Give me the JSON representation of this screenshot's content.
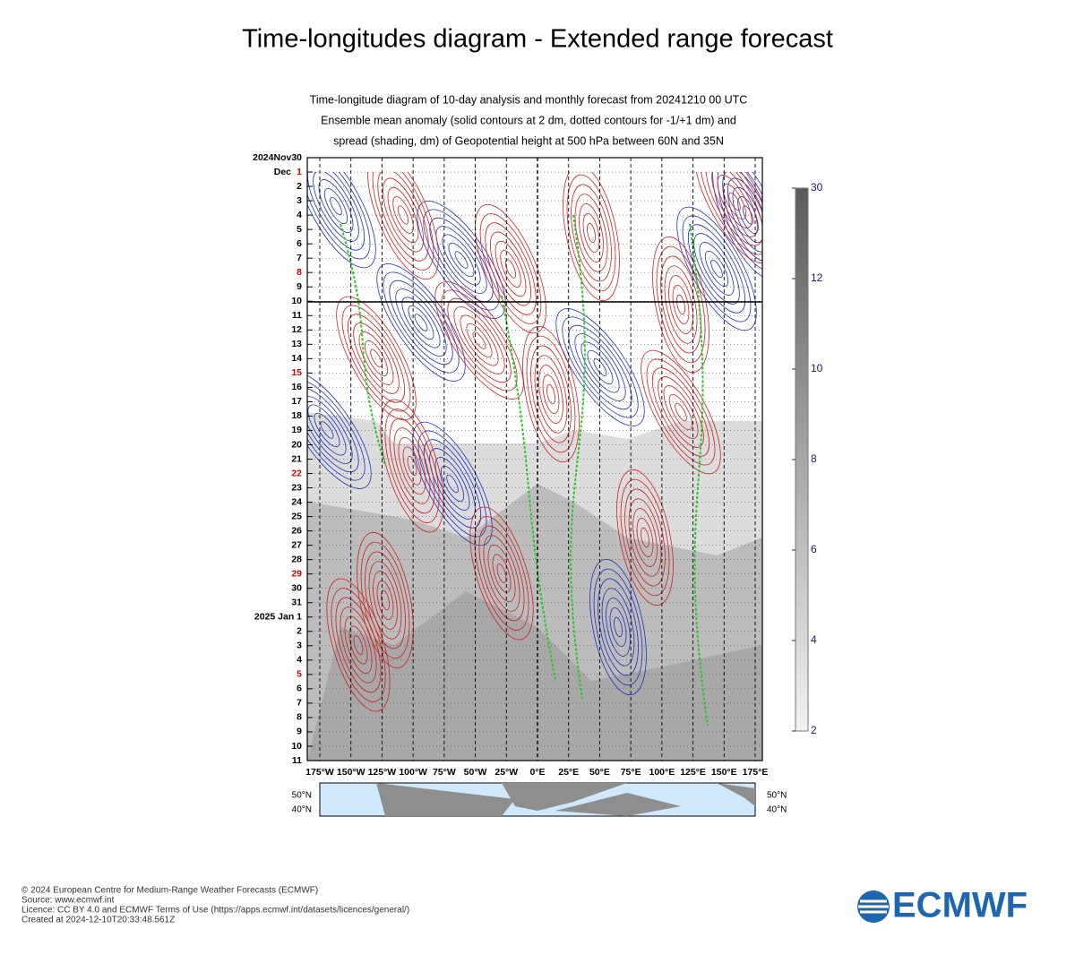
{
  "header": {
    "title": "Time-longitudes diagram - Extended range forecast"
  },
  "plot": {
    "title_lines": [
      "Time-longitude diagram of 10-day analysis and monthly forecast from 20241210 00 UTC",
      "Ensemble mean anomaly (solid contours at 2 dm, dotted contours for -1/+1 dm) and",
      "spread (shading, dm) of Geopotential height at 500 hPa between 60N and 35N"
    ],
    "rows": [
      {
        "label": "2024Nov30",
        "color": "#000000"
      },
      {
        "prefix": "Dec",
        "label": "1",
        "color": "#d00000"
      },
      {
        "label": "2",
        "color": "#000000"
      },
      {
        "label": "3",
        "color": "#000000"
      },
      {
        "label": "4",
        "color": "#000000"
      },
      {
        "label": "5",
        "color": "#000000"
      },
      {
        "label": "6",
        "color": "#000000"
      },
      {
        "label": "7",
        "color": "#000000"
      },
      {
        "label": "8",
        "color": "#d00000"
      },
      {
        "label": "9",
        "color": "#000000"
      },
      {
        "label": "10",
        "color": "#000000"
      },
      {
        "label": "11",
        "color": "#000000"
      },
      {
        "label": "12",
        "color": "#000000"
      },
      {
        "label": "13",
        "color": "#000000"
      },
      {
        "label": "14",
        "color": "#000000"
      },
      {
        "label": "15",
        "color": "#d00000"
      },
      {
        "label": "16",
        "color": "#000000"
      },
      {
        "label": "17",
        "color": "#000000"
      },
      {
        "label": "18",
        "color": "#000000"
      },
      {
        "label": "19",
        "color": "#000000"
      },
      {
        "label": "20",
        "color": "#000000"
      },
      {
        "label": "21",
        "color": "#000000"
      },
      {
        "label": "22",
        "color": "#d00000"
      },
      {
        "label": "23",
        "color": "#000000"
      },
      {
        "label": "24",
        "color": "#000000"
      },
      {
        "label": "25",
        "color": "#000000"
      },
      {
        "label": "26",
        "color": "#000000"
      },
      {
        "label": "27",
        "color": "#000000"
      },
      {
        "label": "28",
        "color": "#000000"
      },
      {
        "label": "29",
        "color": "#d00000"
      },
      {
        "label": "30",
        "color": "#000000"
      },
      {
        "label": "31",
        "color": "#000000"
      },
      {
        "label": "2025 Jan 1",
        "color": "#000000"
      },
      {
        "label": "2",
        "color": "#000000"
      },
      {
        "label": "3",
        "color": "#000000"
      },
      {
        "label": "4",
        "color": "#000000"
      },
      {
        "label": "5",
        "color": "#d00000"
      },
      {
        "label": "6",
        "color": "#000000"
      },
      {
        "label": "7",
        "color": "#000000"
      },
      {
        "label": "8",
        "color": "#000000"
      },
      {
        "label": "9",
        "color": "#000000"
      },
      {
        "label": "10",
        "color": "#000000"
      },
      {
        "label": "11",
        "color": "#000000"
      }
    ],
    "x_labels": [
      "175°W",
      "150°W",
      "125°W",
      "100°W",
      "75°W",
      "50°W",
      "25°W",
      "0°E",
      "25°E",
      "50°E",
      "75°E",
      "100°E",
      "125°E",
      "150°E",
      "175°E"
    ],
    "colorbar_labels": [
      "30",
      "12",
      "10",
      "8",
      "6",
      "4",
      "2"
    ],
    "map_labels": [
      "50°N",
      "40°N"
    ]
  },
  "footer": {
    "lines": [
      "© 2024 European Centre for Medium-Range Weather Forecasts (ECMWF)",
      "Source: www.ecmwf.int",
      "Licence: CC BY 4.0 and ECMWF Terms of Use (https://apps.ecmwf.int/datasets/licences/general/)",
      "Created at 2024-12-10T20:33:48.561Z"
    ],
    "logo": "ECMWF"
  }
}
